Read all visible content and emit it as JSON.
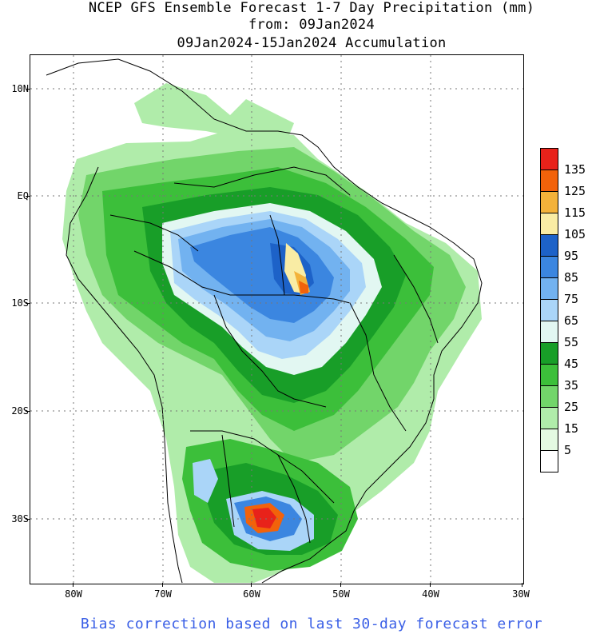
{
  "title": {
    "line1": "NCEP GFS Ensemble Forecast 1-7 Day Precipitation (mm)",
    "line2": "from: 09Jan2024",
    "line3": "09Jan2024-15Jan2024 Accumulation"
  },
  "axes": {
    "latitude_labels": [
      "10N",
      "EQ",
      "10S",
      "20S",
      "30S"
    ],
    "longitude_labels": [
      "80W",
      "70W",
      "60W",
      "50W",
      "40W",
      "30W"
    ]
  },
  "colorbar": {
    "labels": [
      "135",
      "125",
      "115",
      "105",
      "95",
      "85",
      "75",
      "65",
      "55",
      "45",
      "35",
      "25",
      "15",
      "5"
    ],
    "colors": [
      "#e8221a",
      "#f2620a",
      "#f3b23a",
      "#f9eca4",
      "#1d62c8",
      "#3b86e0",
      "#72b2f0",
      "#aad5f8",
      "#e2f7f2",
      "#189e28",
      "#3cbf3a",
      "#72d56a",
      "#b0ecaa",
      "#e4f9e2",
      "#ffffff"
    ]
  },
  "map_colors": {
    "light_green": "#b0ecaa",
    "mid_green": "#72d56a",
    "green": "#3cbf3a",
    "dark_green": "#189e28",
    "pale_cyan": "#e2f7f2",
    "pale_blue": "#aad5f8",
    "light_blue": "#72b2f0",
    "blue": "#3b86e0",
    "dark_blue": "#1d62c8",
    "yellow": "#f9eca4",
    "orange_yellow": "#f3b23a",
    "orange": "#f2620a",
    "red": "#e8221a"
  },
  "footer": "Bias correction based on last 30-day forecast error"
}
